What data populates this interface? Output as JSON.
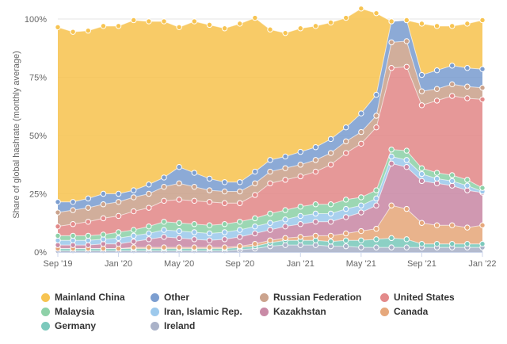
{
  "chart_data": {
    "type": "area",
    "stacking": "percent",
    "ylabel": "Share of global hashrate (monthly average)",
    "yticks": [
      "0%",
      "25%",
      "50%",
      "75%",
      "100%"
    ],
    "ylim": [
      0,
      100
    ],
    "xticks": [
      "Sep '19",
      "Jan '20",
      "May '20",
      "Sep '20",
      "Jan '21",
      "May '21",
      "Sep '21",
      "Jan '22"
    ],
    "categories": [
      "Sep '19",
      "Oct '19",
      "Nov '19",
      "Dec '19",
      "Jan '20",
      "Feb '20",
      "Mar '20",
      "Apr '20",
      "May '20",
      "Jun '20",
      "Jul '20",
      "Aug '20",
      "Sep '20",
      "Oct '20",
      "Nov '20",
      "Dec '20",
      "Jan '21",
      "Feb '21",
      "Mar '21",
      "Apr '21",
      "May '21",
      "Jun '21",
      "Jul '21",
      "Aug '21",
      "Sep '21",
      "Oct '21",
      "Nov '21",
      "Dec '21",
      "Jan '22"
    ],
    "legend_position": "bottom",
    "grid": true,
    "series": [
      {
        "name": "Ireland",
        "color": "#aab2c8",
        "values": [
          0.5,
          0.5,
          0.5,
          0.5,
          0.5,
          0.5,
          0.5,
          0.5,
          0.5,
          0.5,
          0.5,
          0.5,
          1,
          1.5,
          2.5,
          3,
          3,
          3,
          2.5,
          2.5,
          2,
          2,
          2,
          2,
          2,
          2,
          2,
          2,
          2
        ]
      },
      {
        "name": "Germany",
        "color": "#7cc9bc",
        "values": [
          1,
          1,
          1,
          1,
          1,
          1,
          1,
          1,
          1,
          1,
          1,
          1,
          1,
          1,
          1.5,
          2,
          2,
          2,
          2,
          2.5,
          3,
          3.5,
          4,
          3.5,
          1.5,
          1.5,
          1.5,
          1.5,
          1.5
        ]
      },
      {
        "name": "Canada",
        "color": "#e6a87c",
        "values": [
          0,
          0,
          0,
          0,
          0,
          0.5,
          0.5,
          0.5,
          0.5,
          0.5,
          0.5,
          0.5,
          0.5,
          1,
          1,
          1,
          1.5,
          2,
          2.5,
          3,
          4,
          4.5,
          14,
          13,
          9,
          8,
          8,
          7,
          8
        ]
      },
      {
        "name": "Kazakhstan",
        "color": "#c98aa6",
        "values": [
          1.5,
          1.5,
          1.5,
          2,
          2,
          2.5,
          3.5,
          4.5,
          4,
          3.5,
          3,
          3.5,
          4,
          4.5,
          4.5,
          5,
          5.5,
          6,
          6,
          7,
          8,
          10,
          18,
          18,
          18,
          18,
          17,
          16,
          14
        ]
      },
      {
        "name": "Iran, Islamic Rep.",
        "color": "#9dc9ec",
        "values": [
          2,
          2,
          2,
          2,
          2.5,
          2.5,
          2.5,
          3,
          3,
          3,
          3,
          3,
          3,
          3,
          3,
          3,
          3.5,
          3.5,
          3.5,
          3.5,
          3,
          3,
          3,
          3,
          3,
          2,
          2,
          2,
          0.5
        ]
      },
      {
        "name": "Malaysia",
        "color": "#8ed1a8",
        "values": [
          2,
          2,
          2,
          2,
          2.5,
          2.5,
          3,
          3.5,
          3.5,
          3.5,
          3.5,
          3.5,
          3.5,
          3.5,
          4,
          4,
          4,
          4,
          4,
          4,
          3.5,
          3.5,
          3,
          4,
          2.5,
          2.5,
          2.5,
          2.5,
          1.5
        ]
      },
      {
        "name": "United States",
        "color": "#e38a8a",
        "values": [
          4,
          5,
          6,
          7,
          7,
          8,
          8,
          9,
          10,
          10,
          10,
          9,
          8,
          10,
          13,
          13,
          13,
          14,
          17,
          20,
          23,
          27,
          35,
          36,
          27,
          31,
          34,
          35,
          38
        ]
      },
      {
        "name": "Russian Federation",
        "color": "#cba38d",
        "values": [
          6,
          6,
          6,
          6,
          6,
          6,
          6,
          6,
          7,
          6,
          5,
          5,
          5,
          5,
          5,
          5,
          5,
          5,
          5,
          5,
          5,
          5,
          11,
          11,
          6,
          5,
          5,
          5,
          5
        ]
      },
      {
        "name": "Other",
        "color": "#7c9ed0",
        "values": [
          4.5,
          3.5,
          4,
          4.5,
          3.5,
          3,
          4,
          4,
          7,
          6,
          5,
          4,
          4,
          5,
          5,
          5,
          5.5,
          5.5,
          6,
          6,
          8,
          9,
          9,
          9,
          7,
          8,
          8,
          8,
          8
        ]
      },
      {
        "name": "Mainland China",
        "color": "#f7c452",
        "values": [
          75,
          73,
          72,
          72,
          72,
          73,
          70,
          67,
          60,
          65,
          66,
          66,
          68,
          66,
          56,
          53,
          53,
          52,
          50,
          47,
          45,
          35,
          0,
          0,
          22,
          19,
          17,
          19,
          21
        ]
      }
    ]
  },
  "legend_rows": [
    [
      {
        "label": "Mainland China",
        "color": "#f7c452"
      },
      {
        "label": "Other",
        "color": "#7c9ed0"
      },
      {
        "label": "Russian Federation",
        "color": "#cba38d"
      },
      {
        "label": "United States",
        "color": "#e38a8a"
      }
    ],
    [
      {
        "label": "Malaysia",
        "color": "#8ed1a8"
      },
      {
        "label": "Iran, Islamic Rep.",
        "color": "#9dc9ec"
      },
      {
        "label": "Kazakhstan",
        "color": "#c98aa6"
      },
      {
        "label": "Canada",
        "color": "#e6a87c"
      }
    ],
    [
      {
        "label": "Germany",
        "color": "#7cc9bc"
      },
      {
        "label": "Ireland",
        "color": "#aab2c8"
      }
    ]
  ]
}
